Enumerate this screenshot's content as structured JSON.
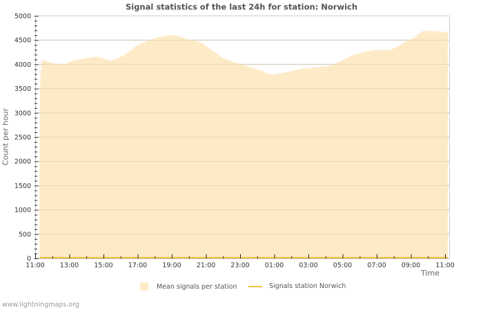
{
  "chart_data": {
    "type": "area",
    "title": "Signal statistics of the last 24h for station: Norwich",
    "xlabel": "Time",
    "ylabel": "Count per hour",
    "ylim": [
      0,
      5000
    ],
    "yticks": [
      0,
      500,
      1000,
      1500,
      2000,
      2500,
      3000,
      3500,
      4000,
      4500,
      5000
    ],
    "xtick_labels": [
      "11:00",
      "13:00",
      "15:00",
      "17:00",
      "19:00",
      "21:00",
      "23:00",
      "01:00",
      "03:00",
      "05:00",
      "07:00",
      "09:00",
      "11:00"
    ],
    "grid": true,
    "legend_position": "bottom",
    "series": [
      {
        "name": "Mean signals per station",
        "kind": "area",
        "color": "#fdebc8",
        "x_hours": [
          0.25,
          0.3,
          0.4,
          0.8,
          1.2,
          1.8,
          2.2,
          2.6,
          3.0,
          3.6,
          4.0,
          4.4,
          4.8,
          5.2,
          5.6,
          6.0,
          6.6,
          7.2,
          7.8,
          8.2,
          8.6,
          9.0,
          9.4,
          9.8,
          10.2,
          10.6,
          11.0,
          11.6,
          12.2,
          12.8,
          13.2,
          13.6,
          14.0,
          14.4,
          15.0,
          15.6,
          16.2,
          16.8,
          17.4,
          17.8,
          18.2,
          18.6,
          19.0,
          19.6,
          20.0,
          20.4,
          20.8,
          21.2,
          21.7,
          22.2,
          22.7,
          23.3,
          23.9
        ],
        "values": [
          1700,
          3750,
          4090,
          4050,
          4010,
          4010,
          4080,
          4100,
          4130,
          4160,
          4120,
          4080,
          4120,
          4190,
          4290,
          4400,
          4490,
          4560,
          4600,
          4600,
          4560,
          4500,
          4490,
          4430,
          4330,
          4230,
          4130,
          4050,
          3990,
          3920,
          3880,
          3810,
          3790,
          3820,
          3860,
          3910,
          3930,
          3950,
          3980,
          4050,
          4120,
          4190,
          4230,
          4280,
          4300,
          4290,
          4300,
          4360,
          4470,
          4550,
          4690,
          4690,
          4670
        ]
      },
      {
        "name": "Signals station Norwich",
        "kind": "line",
        "color": "#f5c242",
        "x_hours": [
          0.25,
          24
        ],
        "values": [
          0,
          0
        ]
      }
    ]
  },
  "header": {
    "title": "Signal statistics of the last 24h for station: Norwich"
  },
  "axes": {
    "ylabel": "Count per hour",
    "xlabel": "Time"
  },
  "legend": {
    "items": [
      {
        "label": "Mean signals per station",
        "color": "#fdebc8"
      },
      {
        "label": "Signals station Norwich",
        "color": "#f5c242"
      }
    ]
  },
  "footer": {
    "text": "www.lightningmaps.org"
  }
}
